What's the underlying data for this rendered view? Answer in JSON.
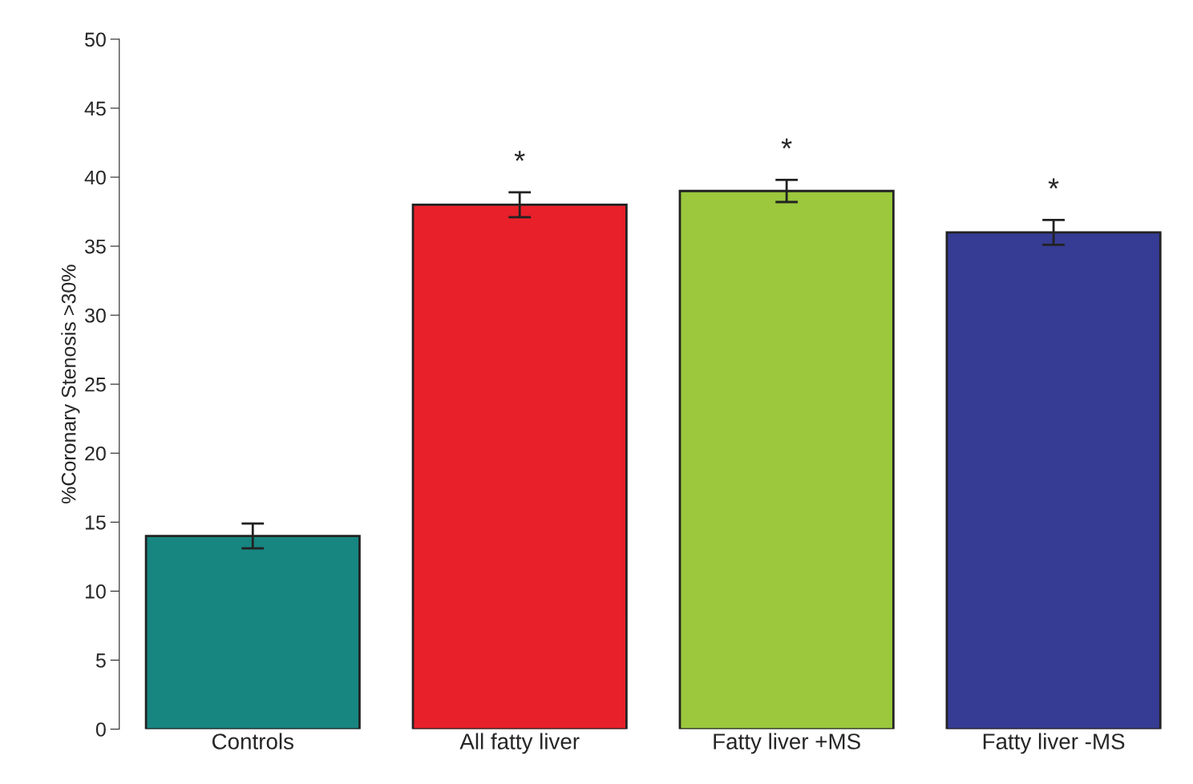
{
  "chart_data": {
    "type": "bar",
    "ylabel": "%Coronary Stenosis >30%",
    "categories": [
      "Controls",
      "All fatty liver",
      "Fatty liver +MS",
      "Fatty liver -MS"
    ],
    "values": [
      14,
      38,
      39,
      36
    ],
    "colors": [
      "#178580",
      "#e8202a",
      "#9bc83c",
      "#363b93"
    ],
    "errors": [
      0.9,
      0.9,
      0.8,
      0.9
    ],
    "ylim": [
      0,
      50
    ],
    "yticks": [
      0,
      5,
      10,
      15,
      20,
      25,
      30,
      35,
      40,
      45,
      50
    ],
    "annotations": [
      "*",
      "*",
      "*"
    ],
    "grid": false,
    "legend": false
  }
}
